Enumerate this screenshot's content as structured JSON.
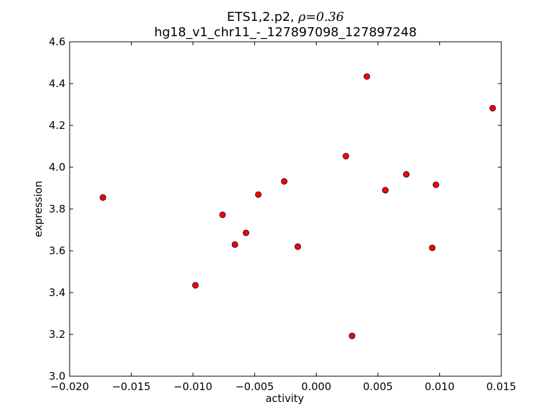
{
  "chart_data": {
    "type": "scatter",
    "title_line1_prefix": "ETS1,2.p2, ",
    "title_line1_math": "ρ=0.36",
    "title_line2": "hg18_v1_chr11_-_127897098_127897248",
    "xlabel": "activity",
    "ylabel": "expression",
    "xlim": [
      -0.02,
      0.015
    ],
    "ylim": [
      3.0,
      4.6
    ],
    "xticks": [
      -0.02,
      -0.015,
      -0.01,
      -0.005,
      0.0,
      0.005,
      0.01,
      0.015
    ],
    "xtick_labels": [
      "−0.020",
      "−0.015",
      "−0.010",
      "−0.005",
      "0.000",
      "0.005",
      "0.010",
      "0.015"
    ],
    "yticks": [
      3.0,
      3.2,
      3.4,
      3.6,
      3.8,
      4.0,
      4.2,
      4.4,
      4.6
    ],
    "ytick_labels": [
      "3.0",
      "3.2",
      "3.4",
      "3.6",
      "3.8",
      "4.0",
      "4.2",
      "4.4",
      "4.6"
    ],
    "grid": false,
    "marker_color": "#ff0000",
    "marker_edge_color": "#000000",
    "points": [
      {
        "x": -0.0173,
        "y": 3.855
      },
      {
        "x": -0.0098,
        "y": 3.435
      },
      {
        "x": -0.0076,
        "y": 3.772
      },
      {
        "x": -0.0066,
        "y": 3.63
      },
      {
        "x": -0.0057,
        "y": 3.686
      },
      {
        "x": -0.0047,
        "y": 3.869
      },
      {
        "x": -0.0026,
        "y": 3.932
      },
      {
        "x": -0.0015,
        "y": 3.62
      },
      {
        "x": 0.0024,
        "y": 4.053
      },
      {
        "x": 0.0029,
        "y": 3.193
      },
      {
        "x": 0.0041,
        "y": 4.434
      },
      {
        "x": 0.0056,
        "y": 3.89
      },
      {
        "x": 0.0073,
        "y": 3.966
      },
      {
        "x": 0.0094,
        "y": 3.614
      },
      {
        "x": 0.0097,
        "y": 3.916
      },
      {
        "x": 0.0143,
        "y": 4.282
      }
    ]
  }
}
